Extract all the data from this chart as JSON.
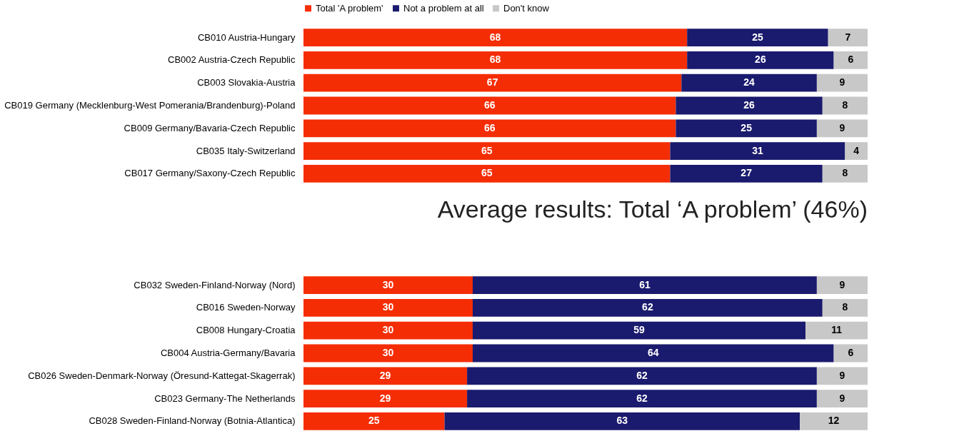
{
  "chart_data": [
    {
      "type": "bar",
      "orientation": "horizontal",
      "stacked": true,
      "data_labels": true,
      "legend": "top",
      "grid": false,
      "categories": [
        "CB010 Austria-Hungary",
        "CB002 Austria-Czech Republic",
        "CB003 Slovakia-Austria",
        "CB019 Germany (Mecklenburg-West Pomerania/Brandenburg)-Poland",
        "CB009 Germany/Bavaria-Czech Republic",
        "CB035 Italy-Switzerland",
        "CB017 Germany/Saxony-Czech Republic"
      ],
      "series": [
        {
          "name": "Total 'A problem'",
          "color": "#f52d05",
          "values": [
            68,
            68,
            67,
            66,
            66,
            65,
            65
          ]
        },
        {
          "name": "Not a problem at all",
          "color": "#1a1a6e",
          "values": [
            25,
            26,
            24,
            26,
            25,
            31,
            27
          ]
        },
        {
          "name": "Don't know",
          "color": "#c8c8c8",
          "values": [
            7,
            6,
            9,
            8,
            9,
            4,
            8
          ]
        }
      ],
      "annotations": [
        "Average results: Total ‘A problem’ (46%)"
      ]
    },
    {
      "type": "bar",
      "orientation": "horizontal",
      "stacked": true,
      "data_labels": true,
      "grid": false,
      "categories": [
        "CB032 Sweden-Finland-Norway (Nord)",
        "CB016 Sweden-Norway",
        "CB008 Hungary-Croatia",
        "CB004 Austria-Germany/Bavaria",
        "CB026 Sweden-Denmark-Norway (Öresund-Kattegat-Skagerrak)",
        "CB023 Germany-The Netherlands",
        "CB028 Sweden-Finland-Norway (Botnia-Atlantica)"
      ],
      "series": [
        {
          "name": "Total 'A problem'",
          "color": "#f52d05",
          "values": [
            30,
            30,
            30,
            30,
            29,
            29,
            25
          ]
        },
        {
          "name": "Not a problem at all",
          "color": "#1a1a6e",
          "values": [
            61,
            62,
            59,
            64,
            62,
            62,
            63
          ]
        },
        {
          "name": "Don't know",
          "color": "#c8c8c8",
          "values": [
            9,
            8,
            11,
            6,
            9,
            9,
            12
          ]
        }
      ]
    }
  ]
}
